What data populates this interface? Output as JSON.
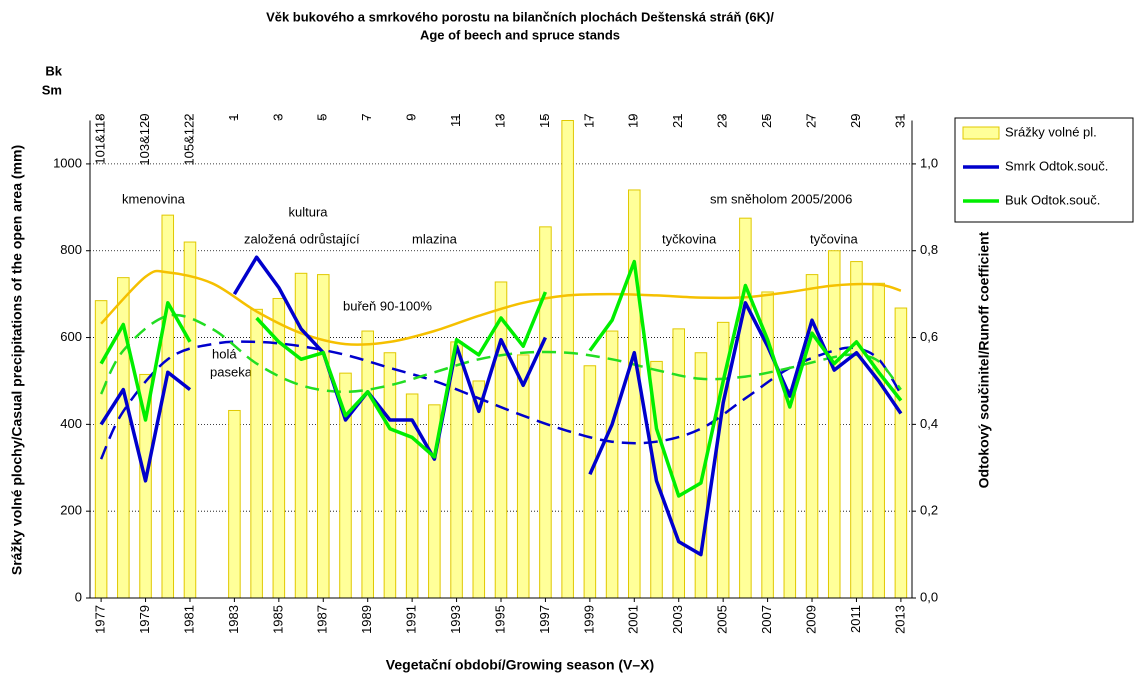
{
  "chart_data": {
    "type": "combo",
    "title": [
      "Věk bukového a smrkového porostu na bilančních plochách Deštenská stráň (6K)/",
      "Age of beech and spruce stands"
    ],
    "x_label": "Vegetační období/Growing season (V–X)",
    "y_label": "Srážky volné plochy/Casual precipitations of the open area (mm)",
    "y2_label": "Odtokový součinitel/Runoff coefficient",
    "row_labels": [
      "Bk",
      "Sm"
    ],
    "x": [
      1977,
      1978,
      1979,
      1980,
      1981,
      1982,
      1983,
      1984,
      1985,
      1986,
      1987,
      1988,
      1989,
      1990,
      1991,
      1992,
      1993,
      1994,
      1995,
      1996,
      1997,
      1998,
      1999,
      2000,
      2001,
      2002,
      2003,
      2004,
      2005,
      2006,
      2007,
      2008,
      2009,
      2010,
      2011,
      2012,
      2013
    ],
    "xlim": [
      1976.5,
      2013.5
    ],
    "xticks": [
      1977,
      1979,
      1981,
      1983,
      1985,
      1987,
      1989,
      1991,
      1993,
      1995,
      1997,
      1999,
      2001,
      2003,
      2005,
      2007,
      2009,
      2011,
      2013
    ],
    "top_ticks": [
      {
        "value": 1977,
        "label": "101&118"
      },
      {
        "value": 1979,
        "label": "103&120"
      },
      {
        "value": 1981,
        "label": "105&122"
      },
      {
        "value": 1983,
        "label": "1"
      },
      {
        "value": 1985,
        "label": "3"
      },
      {
        "value": 1987,
        "label": "5"
      },
      {
        "value": 1989,
        "label": "7"
      },
      {
        "value": 1991,
        "label": "9"
      },
      {
        "value": 1993,
        "label": "11"
      },
      {
        "value": 1995,
        "label": "13"
      },
      {
        "value": 1997,
        "label": "15"
      },
      {
        "value": 1999,
        "label": "17"
      },
      {
        "value": 2001,
        "label": "19"
      },
      {
        "value": 2003,
        "label": "21"
      },
      {
        "value": 2005,
        "label": "23"
      },
      {
        "value": 2007,
        "label": "25"
      },
      {
        "value": 2009,
        "label": "27"
      },
      {
        "value": 2011,
        "label": "29"
      },
      {
        "value": 2013,
        "label": "31"
      }
    ],
    "ylim": [
      0,
      1100
    ],
    "yticks": [
      0,
      200,
      400,
      600,
      800,
      1000
    ],
    "y2lim": [
      0,
      1.1
    ],
    "y2ticks": [
      {
        "value": 0,
        "label": "0,0"
      },
      {
        "value": 0.2,
        "label": "0,2"
      },
      {
        "value": 0.4,
        "label": "0,4"
      },
      {
        "value": 0.6,
        "label": "0,6"
      },
      {
        "value": 0.8,
        "label": "0,8"
      },
      {
        "value": 1.0,
        "label": "1,0"
      }
    ],
    "grid": true,
    "legend": "right",
    "series": [
      {
        "name": "Srážky volné pl.",
        "type": "bar",
        "color": "#ffff99",
        "values": [
          685,
          738,
          515,
          882,
          820,
          null,
          432,
          665,
          690,
          748,
          745,
          518,
          615,
          565,
          470,
          445,
          590,
          500,
          728,
          560,
          855,
          1100,
          535,
          615,
          940,
          545,
          620,
          565,
          635,
          875,
          705,
          480,
          745,
          800,
          775,
          725,
          668
        ]
      },
      {
        "name": "Smrk Odtok.souč.",
        "type": "line",
        "axis": "y2",
        "color": "#0000cc",
        "values": [
          0.4,
          0.48,
          0.27,
          0.52,
          0.48,
          null,
          0.7,
          0.785,
          0.715,
          0.62,
          0.565,
          0.41,
          0.475,
          0.41,
          0.41,
          0.32,
          0.58,
          0.43,
          0.595,
          0.49,
          0.6,
          null,
          0.285,
          0.4,
          0.565,
          0.27,
          0.13,
          0.1,
          0.45,
          0.68,
          0.58,
          0.465,
          0.64,
          0.525,
          0.565,
          0.5,
          0.425
        ]
      },
      {
        "name": "Buk Odtok.souč.",
        "type": "line",
        "axis": "y2",
        "color": "#00ee00",
        "values": [
          0.54,
          0.63,
          0.41,
          0.68,
          0.59,
          null,
          null,
          0.645,
          0.59,
          0.55,
          0.565,
          0.42,
          0.475,
          0.39,
          0.37,
          0.325,
          0.595,
          0.56,
          0.645,
          0.58,
          0.705,
          null,
          0.57,
          0.64,
          0.775,
          0.39,
          0.235,
          0.265,
          0.5,
          0.72,
          0.595,
          0.44,
          0.61,
          0.54,
          0.59,
          0.52,
          0.455
        ]
      }
    ],
    "trends": [
      {
        "color": "#f5c000",
        "dash": false,
        "axis": "y",
        "x": [
          1977,
          1979,
          1980,
          1982,
          1984,
          1986,
          1988,
          1990,
          1992,
          1994,
          1996,
          1998,
          2000,
          2002,
          2004,
          2006,
          2008,
          2010,
          2012,
          2013
        ],
        "values": [
          632,
          740,
          750,
          725,
          660,
          610,
          585,
          590,
          615,
          650,
          680,
          697,
          700,
          697,
          692,
          693,
          705,
          720,
          722,
          708
        ]
      },
      {
        "color": "#0000cc",
        "dash": true,
        "axis": "y2",
        "x": [
          1977,
          1978,
          1980,
          1982,
          1984,
          1986,
          1988,
          1990,
          1992,
          1994,
          1996,
          1998,
          2000,
          2002,
          2004,
          2006,
          2008,
          2010,
          2011,
          2012,
          2013
        ],
        "values": [
          0.32,
          0.43,
          0.55,
          0.585,
          0.59,
          0.58,
          0.56,
          0.53,
          0.5,
          0.46,
          0.42,
          0.385,
          0.36,
          0.36,
          0.39,
          0.46,
          0.53,
          0.57,
          0.575,
          0.55,
          0.47
        ]
      },
      {
        "color": "#22dd22",
        "dash": true,
        "axis": "y2",
        "x": [
          1977,
          1978,
          1980,
          1982,
          1984,
          1986,
          1988,
          1990,
          1992,
          1994,
          1996,
          1998,
          2000,
          2002,
          2004,
          2006,
          2008,
          2010,
          2011,
          2012,
          2013
        ],
        "values": [
          0.47,
          0.57,
          0.65,
          0.62,
          0.54,
          0.49,
          0.475,
          0.49,
          0.52,
          0.55,
          0.565,
          0.565,
          0.55,
          0.525,
          0.505,
          0.51,
          0.53,
          0.555,
          0.56,
          0.545,
          0.48
        ]
      }
    ],
    "annotations": [
      "kmenovina",
      "kultura",
      "založená odrůstající",
      "mlazina",
      "buřeň 90-100%",
      "holá",
      "paseka",
      "tyčkovina",
      "sm sněholom 2005/2006",
      "tyčovina"
    ]
  }
}
